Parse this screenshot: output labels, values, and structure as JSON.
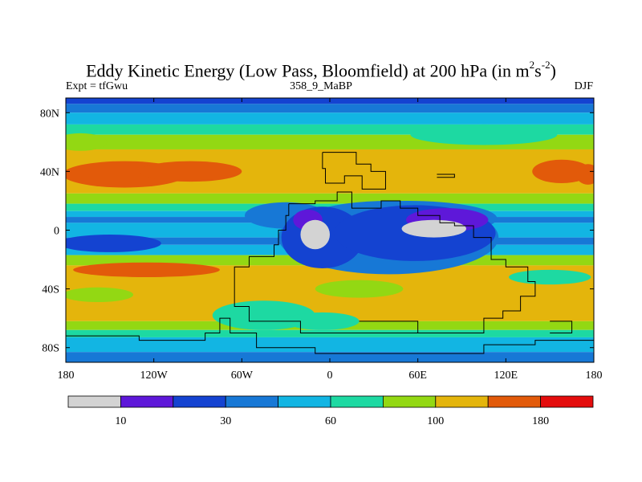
{
  "chart_data": {
    "type": "heatmap",
    "title": "Eddy Kinetic Energy (Low Pass, Bloomfield) at 200 hPa (in m",
    "title_unit_1": "2",
    "title_unit_2": "s",
    "title_unit_3": "-2",
    "title_close": ")",
    "subtitle_left": "Expt = tfGwu",
    "subtitle_center": "358_9_MaBP",
    "subtitle_right": "DJF",
    "xlim": [
      -180,
      180
    ],
    "ylim": [
      -90,
      90
    ],
    "x_ticks": [
      {
        "value": -180,
        "label": "180"
      },
      {
        "value": -120,
        "label": "120W"
      },
      {
        "value": -60,
        "label": "60W"
      },
      {
        "value": 0,
        "label": "0"
      },
      {
        "value": 60,
        "label": "60E"
      },
      {
        "value": 120,
        "label": "120E"
      },
      {
        "value": 180,
        "label": "180"
      }
    ],
    "y_ticks": [
      {
        "value": 80,
        "label": "80N"
      },
      {
        "value": 40,
        "label": "40N"
      },
      {
        "value": 0,
        "label": "0"
      },
      {
        "value": -40,
        "label": "40S"
      },
      {
        "value": -80,
        "label": "80S"
      }
    ],
    "colorbar": {
      "colors": [
        "#d3d3d3",
        "#5e18d9",
        "#1443d1",
        "#1778d6",
        "#12b5e3",
        "#1dd9a2",
        "#93d813",
        "#e4b50c",
        "#e25a0a",
        "#e40d0d"
      ],
      "tick_labels": [
        {
          "boundary": 1,
          "label": "10"
        },
        {
          "boundary": 3,
          "label": "30"
        },
        {
          "boundary": 5,
          "label": "60"
        },
        {
          "boundary": 7,
          "label": "100"
        },
        {
          "boundary": 9,
          "label": "180"
        }
      ]
    },
    "bands": [
      {
        "lat_top": 90,
        "lat_bot": 86,
        "level": 2
      },
      {
        "lat_top": 86,
        "lat_bot": 80,
        "level": 3
      },
      {
        "lat_top": 80,
        "lat_bot": 72,
        "level": 4
      },
      {
        "lat_top": 72,
        "lat_bot": 65,
        "level": 5
      },
      {
        "lat_top": 65,
        "lat_bot": 55,
        "level": 6
      },
      {
        "lat_top": 55,
        "lat_bot": 25,
        "level": 7
      },
      {
        "lat_top": 25,
        "lat_bot": 18,
        "level": 6
      },
      {
        "lat_top": 18,
        "lat_bot": 13,
        "level": 5
      },
      {
        "lat_top": 13,
        "lat_bot": 9,
        "level": 4
      },
      {
        "lat_top": 9,
        "lat_bot": 5,
        "level": 3
      },
      {
        "lat_top": 5,
        "lat_bot": -5,
        "level": 4
      },
      {
        "lat_top": -5,
        "lat_bot": -10,
        "level": 3
      },
      {
        "lat_top": -10,
        "lat_bot": -17,
        "level": 4
      },
      {
        "lat_top": -17,
        "lat_bot": -24,
        "level": 6
      },
      {
        "lat_top": -24,
        "lat_bot": -62,
        "level": 7
      },
      {
        "lat_top": -62,
        "lat_bot": -68,
        "level": 6
      },
      {
        "lat_top": -68,
        "lat_bot": -73,
        "level": 5
      },
      {
        "lat_top": -73,
        "lat_bot": -83,
        "level": 4
      },
      {
        "lat_top": -83,
        "lat_bot": -90,
        "level": 3
      }
    ],
    "blobs": [
      {
        "lon": -140,
        "lat": 38,
        "rlon": 42,
        "rlat": 9,
        "level": 8
      },
      {
        "lon": -95,
        "lat": 40,
        "rlon": 35,
        "rlat": 7,
        "level": 8
      },
      {
        "lon": 158,
        "lat": 40,
        "rlon": 20,
        "rlat": 8,
        "level": 8
      },
      {
        "lon": 176,
        "lat": 38,
        "rlon": 8,
        "rlat": 7,
        "level": 8
      },
      {
        "lon": -30,
        "lat": 10,
        "rlon": 28,
        "rlat": 9,
        "level": 3
      },
      {
        "lon": 52,
        "lat": 8,
        "rlon": 62,
        "rlat": 12,
        "level": 3
      },
      {
        "lon": 40,
        "lat": -5,
        "rlon": 75,
        "rlat": 25,
        "level": 3
      },
      {
        "lon": -5,
        "lat": -5,
        "rlon": 28,
        "rlat": 21,
        "level": 2
      },
      {
        "lon": 58,
        "lat": -2,
        "rlon": 55,
        "rlat": 19,
        "level": 2
      },
      {
        "lon": -15,
        "lat": 7,
        "rlon": 10,
        "rlat": 7,
        "level": 1
      },
      {
        "lon": 80,
        "lat": 7,
        "rlon": 28,
        "rlat": 8,
        "level": 1
      },
      {
        "lon": -10,
        "lat": -3,
        "rlon": 10,
        "rlat": 10,
        "level": 0
      },
      {
        "lon": 71,
        "lat": 1,
        "rlon": 22,
        "rlat": 6,
        "level": 0
      },
      {
        "lon": -150,
        "lat": -9,
        "rlon": 35,
        "rlat": 6,
        "level": 2
      },
      {
        "lon": -125,
        "lat": -27,
        "rlon": 50,
        "rlat": 5,
        "level": 8
      },
      {
        "lon": 150,
        "lat": -32,
        "rlon": 28,
        "rlat": 5,
        "level": 5
      },
      {
        "lon": -158,
        "lat": -44,
        "rlon": 24,
        "rlat": 5,
        "level": 6
      },
      {
        "lon": 20,
        "lat": -40,
        "rlon": 30,
        "rlat": 6,
        "level": 6
      },
      {
        "lon": -45,
        "lat": -58,
        "rlon": 35,
        "rlat": 10,
        "level": 5
      },
      {
        "lon": -5,
        "lat": -62,
        "rlon": 25,
        "rlat": 6,
        "level": 5
      },
      {
        "lon": -170,
        "lat": 60,
        "rlon": 18,
        "rlat": 6,
        "level": 6
      },
      {
        "lon": 105,
        "lat": 65,
        "rlon": 50,
        "rlat": 7,
        "level": 5
      }
    ],
    "continents": [
      [
        [
          -5,
          53
        ],
        [
          18,
          53
        ],
        [
          18,
          45
        ],
        [
          28,
          45
        ],
        [
          28,
          40
        ],
        [
          38,
          40
        ],
        [
          38,
          28
        ],
        [
          22,
          28
        ],
        [
          22,
          37
        ],
        [
          10,
          37
        ],
        [
          10,
          32
        ],
        [
          -3,
          32
        ],
        [
          -3,
          42
        ],
        [
          -5,
          42
        ],
        [
          -5,
          53
        ]
      ],
      [
        [
          -28,
          18
        ],
        [
          -10,
          18
        ],
        [
          -10,
          20
        ],
        [
          5,
          20
        ],
        [
          5,
          26
        ],
        [
          15,
          26
        ],
        [
          15,
          15
        ],
        [
          35,
          15
        ],
        [
          35,
          20
        ],
        [
          48,
          20
        ],
        [
          48,
          15
        ],
        [
          60,
          15
        ],
        [
          60,
          10
        ],
        [
          75,
          10
        ],
        [
          75,
          5
        ],
        [
          85,
          5
        ],
        [
          85,
          3
        ],
        [
          98,
          3
        ],
        [
          98,
          -5
        ],
        [
          110,
          -5
        ],
        [
          110,
          -20
        ],
        [
          120,
          -20
        ],
        [
          120,
          -25
        ],
        [
          135,
          -25
        ],
        [
          135,
          -35
        ],
        [
          140,
          -35
        ],
        [
          140,
          -45
        ],
        [
          130,
          -45
        ],
        [
          130,
          -55
        ],
        [
          118,
          -55
        ],
        [
          118,
          -60
        ],
        [
          105,
          -60
        ],
        [
          105,
          -70
        ],
        [
          -20,
          -70
        ],
        [
          -20,
          -62
        ],
        [
          -55,
          -62
        ],
        [
          -55,
          -52
        ],
        [
          -65,
          -52
        ],
        [
          -65,
          -25
        ],
        [
          -55,
          -25
        ],
        [
          -55,
          -18
        ],
        [
          -38,
          -18
        ],
        [
          -38,
          -10
        ],
        [
          -35,
          -10
        ],
        [
          -35,
          0
        ],
        [
          -30,
          0
        ],
        [
          -30,
          10
        ],
        [
          -28,
          10
        ],
        [
          -28,
          18
        ]
      ],
      [
        [
          20,
          -62
        ],
        [
          60,
          -62
        ],
        [
          60,
          -70
        ],
        [
          20,
          -70
        ]
      ],
      [
        [
          -180,
          -72
        ],
        [
          -130,
          -72
        ],
        [
          -130,
          -75
        ],
        [
          -85,
          -75
        ],
        [
          -85,
          -70
        ],
        [
          -75,
          -70
        ],
        [
          -75,
          -60
        ],
        [
          -68,
          -60
        ],
        [
          -68,
          -70
        ],
        [
          -50,
          -70
        ],
        [
          -50,
          -80
        ],
        [
          -10,
          -80
        ],
        [
          -10,
          -84
        ],
        [
          105,
          -84
        ],
        [
          105,
          -78
        ],
        [
          140,
          -78
        ],
        [
          140,
          -75
        ],
        [
          180,
          -75
        ]
      ],
      [
        [
          150,
          -62
        ],
        [
          165,
          -62
        ],
        [
          165,
          -70
        ],
        [
          150,
          -70
        ]
      ],
      [
        [
          73,
          38
        ],
        [
          85,
          38
        ],
        [
          85,
          36
        ],
        [
          73,
          36
        ]
      ]
    ]
  }
}
